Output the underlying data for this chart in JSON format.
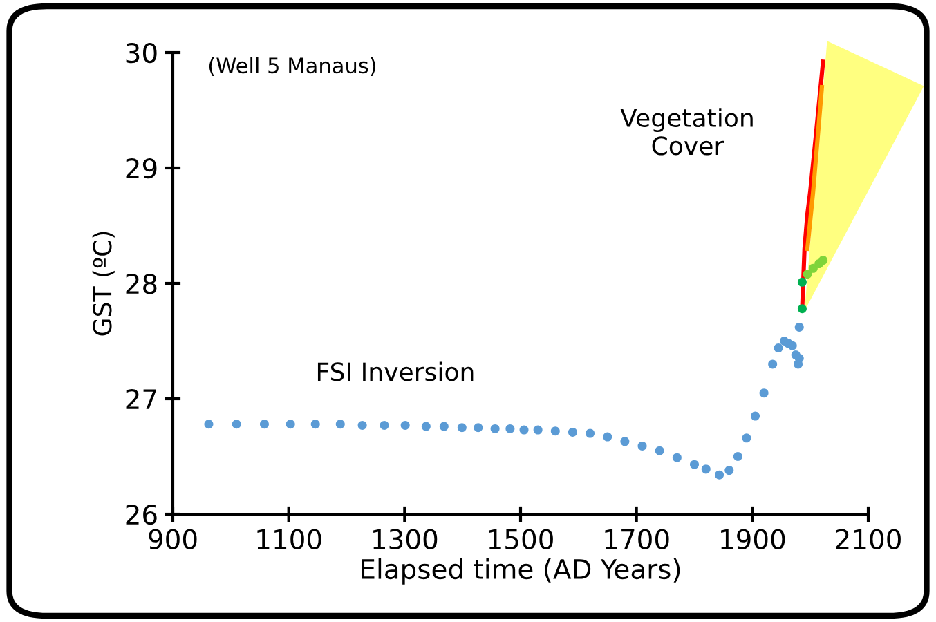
{
  "chart_data": {
    "type": "scatter",
    "xlabel": "Elapsed time (AD Years)",
    "ylabel": "GST (ºC)",
    "xlim": [
      900,
      2100
    ],
    "xticks": [
      900,
      1100,
      1300,
      1500,
      1700,
      1900,
      2100
    ],
    "ylim": [
      26,
      30
    ],
    "yticks": [
      26,
      27,
      28,
      29,
      30
    ],
    "grid": false,
    "legend": false,
    "marker": "circle",
    "annotations": [
      "(Well 5 Manaus)",
      "Vegetation\nCover",
      "FSI Inversion"
    ],
    "series": [
      {
        "color": "#5b9bd5",
        "x": [
          962,
          1010,
          1058,
          1103,
          1146,
          1189,
          1227,
          1265,
          1301,
          1337,
          1368,
          1399,
          1427,
          1456,
          1482,
          1506,
          1530,
          1560,
          1590,
          1620,
          1650,
          1680,
          1710,
          1740,
          1770,
          1800,
          1820,
          1843,
          1860,
          1875,
          1890,
          1905,
          1920,
          1935,
          1945,
          1955,
          1962,
          1969,
          1975,
          1979,
          1981,
          1981
        ],
        "values": [
          26.78,
          26.78,
          26.78,
          26.78,
          26.78,
          26.78,
          26.77,
          26.77,
          26.77,
          26.76,
          26.76,
          26.75,
          26.75,
          26.74,
          26.74,
          26.73,
          26.73,
          26.72,
          26.71,
          26.7,
          26.67,
          26.63,
          26.59,
          26.55,
          26.49,
          26.43,
          26.39,
          26.34,
          26.38,
          26.5,
          26.66,
          26.85,
          27.05,
          27.3,
          27.44,
          27.5,
          27.48,
          27.46,
          27.38,
          27.3,
          27.35,
          27.62
        ]
      },
      {
        "type": "line",
        "marker": "none",
        "color": "#ff0000",
        "x": [
          1986,
          1990,
          1995,
          2000,
          2010,
          2022
        ],
        "values": [
          27.78,
          28.3,
          28.6,
          28.8,
          29.3,
          29.92
        ]
      },
      {
        "type": "line",
        "marker": "none",
        "color": "#ff9900",
        "x": [
          1995,
          2005,
          2015,
          2020
        ],
        "values": [
          28.3,
          28.8,
          29.4,
          29.7
        ]
      },
      {
        "color": "#00b050",
        "x": [
          1986,
          1986
        ],
        "values": [
          27.78,
          28.01
        ]
      },
      {
        "color": "#7fd43a",
        "x": [
          1995,
          2005,
          2015,
          2022
        ],
        "values": [
          28.08,
          28.13,
          28.17,
          28.2
        ]
      }
    ]
  }
}
